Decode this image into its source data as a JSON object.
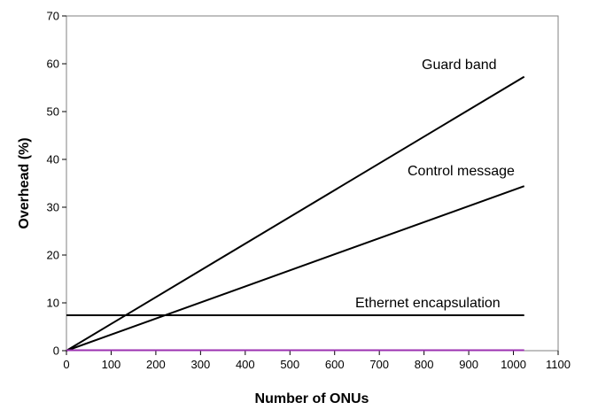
{
  "chart_data": {
    "type": "line",
    "xlabel": "Number of ONUs",
    "ylabel": "Overhead (%)",
    "xlim": [
      0,
      1100
    ],
    "ylim": [
      0,
      70
    ],
    "xticks": [
      0,
      100,
      200,
      300,
      400,
      500,
      600,
      700,
      800,
      900,
      1000,
      1100
    ],
    "yticks": [
      0,
      10,
      20,
      30,
      40,
      50,
      60,
      70
    ],
    "grid": false,
    "series": [
      {
        "name": "Guard band",
        "color": "#000000",
        "x": [
          0,
          1024
        ],
        "y": [
          0,
          57.3
        ]
      },
      {
        "name": "Control message",
        "color": "#000000",
        "x": [
          0,
          1024
        ],
        "y": [
          0,
          34.4
        ]
      },
      {
        "name": "Ethernet encapsulation",
        "color": "#000000",
        "x": [
          0,
          1024
        ],
        "y": [
          7.4,
          7.4
        ]
      },
      {
        "name": "",
        "color": "#9b30b0",
        "x": [
          0,
          1024
        ],
        "y": [
          0.1,
          0.1
        ]
      }
    ],
    "annotations": [
      {
        "text": "Guard band",
        "series": 0
      },
      {
        "text": "Control message",
        "series": 1
      },
      {
        "text": "Ethernet encapsulation",
        "series": 2
      }
    ]
  }
}
